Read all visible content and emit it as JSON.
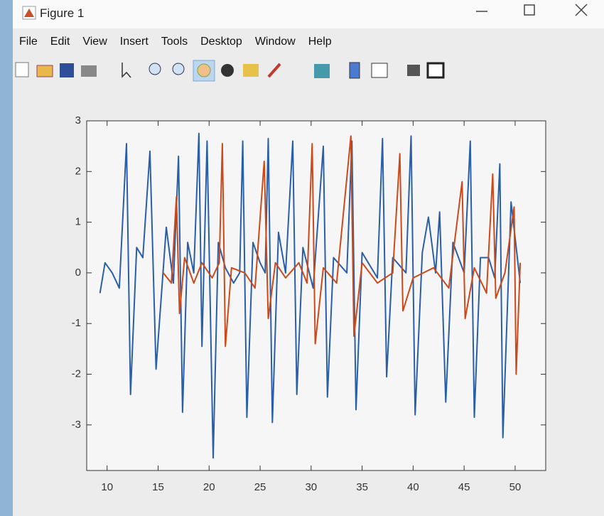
{
  "window": {
    "title": "Figure 1"
  },
  "menu": [
    "File",
    "Edit",
    "View",
    "Insert",
    "Tools",
    "Desktop",
    "Window",
    "Help"
  ],
  "chart_data": {
    "type": "line",
    "xlim": [
      8,
      53
    ],
    "ylim": [
      -3.9,
      3
    ],
    "xticks": [
      10,
      15,
      20,
      25,
      30,
      35,
      40,
      45,
      50
    ],
    "yticks": [
      -3,
      -2,
      -1,
      0,
      1,
      2,
      3
    ],
    "series": [
      {
        "color": "#2a5fa8",
        "x": [
          9.3,
          9.8,
          10.5,
          11.2,
          11.9,
          12.3,
          12.9,
          13.5,
          14.2,
          14.8,
          15.3,
          15.8,
          16.5,
          17.0,
          17.4,
          17.9,
          18.5,
          19.0,
          19.3,
          19.8,
          20.4,
          20.9,
          21.6,
          22.4,
          23.0,
          23.3,
          23.7,
          24.3,
          25.0,
          25.5,
          25.8,
          26.2,
          26.8,
          27.5,
          28.2,
          28.6,
          29.2,
          30.2,
          31.2,
          31.6,
          32.2,
          33.5,
          34.0,
          34.4,
          35.0,
          36.5,
          37.0,
          37.4,
          38.0,
          39.3,
          39.8,
          40.2,
          40.9,
          41.5,
          42.2,
          42.6,
          43.2,
          43.9,
          45.0,
          45.6,
          46.0,
          46.6,
          47.4,
          48.0,
          48.5,
          48.8,
          49.6,
          50.5
        ],
        "values": [
          -0.4,
          0.2,
          0,
          -0.3,
          2.55,
          -2.4,
          0.5,
          0.3,
          2.4,
          -1.9,
          -0.5,
          0.9,
          -0.2,
          2.3,
          -2.75,
          0.6,
          0,
          2.75,
          -1.45,
          2.6,
          -3.65,
          0.6,
          0.1,
          -0.2,
          0,
          2.6,
          -2.85,
          0.6,
          0.2,
          0,
          2.65,
          -2.95,
          0.8,
          0,
          2.6,
          -2.4,
          0.5,
          -0.3,
          2.5,
          -2.45,
          0.3,
          0,
          2.6,
          -2.7,
          0.4,
          -0.1,
          2.65,
          -2.05,
          0.3,
          0,
          2.7,
          -2.8,
          0.4,
          1.1,
          0,
          1.2,
          -2.55,
          0.6,
          0,
          2.6,
          -2.85,
          0.3,
          0.3,
          -0.1,
          2.15,
          -3.25,
          1.4,
          -0.2
        ]
      },
      {
        "color": "#cc4a1a",
        "x": [
          15.5,
          16.3,
          16.8,
          17.1,
          17.6,
          18.5,
          19.3,
          20.3,
          21.0,
          21.3,
          21.6,
          22.2,
          23.5,
          24.5,
          25.4,
          25.8,
          26.5,
          27.5,
          28.8,
          29.6,
          30.1,
          30.4,
          31.2,
          32.5,
          33.9,
          34.2,
          35.0,
          36.5,
          38.0,
          38.7,
          39.0,
          40.0,
          42.0,
          43.5,
          44.8,
          45.1,
          46.0,
          47.2,
          47.8,
          48.1,
          49.0,
          49.9,
          50.1,
          50.5
        ],
        "values": [
          0,
          -0.2,
          1.5,
          -0.8,
          0.3,
          -0.2,
          0.2,
          -0.1,
          0.2,
          2.55,
          -1.45,
          0.1,
          0,
          -0.3,
          2.2,
          -0.9,
          0.2,
          -0.1,
          0.2,
          -0.2,
          2.55,
          -1.4,
          0.1,
          -0.2,
          2.7,
          -1.25,
          0.2,
          -0.2,
          0,
          2.35,
          -0.75,
          -0.1,
          0.1,
          -0.3,
          1.8,
          -0.9,
          0.1,
          -0.4,
          1.95,
          -0.5,
          0,
          1.3,
          -2.0,
          0.2
        ]
      }
    ]
  }
}
